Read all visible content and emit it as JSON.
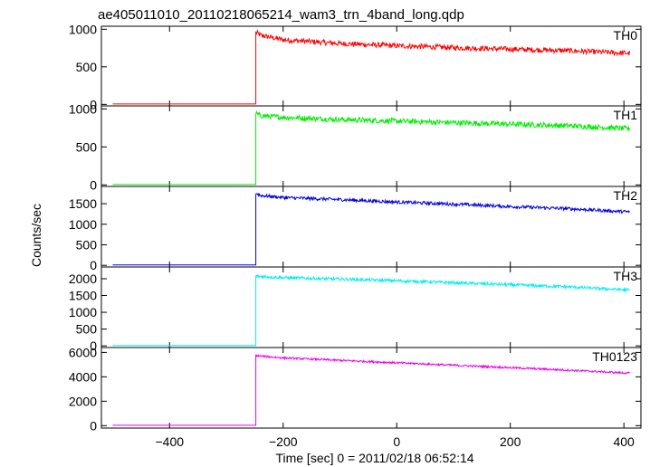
{
  "chart_data": {
    "type": "line",
    "title": "ae405011010_20110218065214_wam3_trn_4band_long.qdp",
    "xlabel": "Time [sec] 0 = 2011/02/18 06:52:14",
    "ylabel": "Counts/sec",
    "xlim": [
      -520,
      430
    ],
    "xticks": [
      -400,
      -200,
      0,
      200,
      400
    ],
    "xtick_labels": [
      "−400",
      "−200",
      "0",
      "200",
      "400"
    ],
    "grid": false,
    "panels": [
      {
        "name": "TH0",
        "color": "#ff0000",
        "ylim": [
          -20,
          1040
        ],
        "yticks": [
          0,
          500,
          1000
        ],
        "ytick_labels": [
          "0",
          "500",
          "1000"
        ],
        "series": {
          "x_start": -500,
          "x_end": 410,
          "onset": -248,
          "pre_level": 5,
          "post_x": [
            -248,
            -240,
            -200,
            -100,
            0,
            100,
            200,
            300,
            410
          ],
          "post_y": [
            960,
            920,
            860,
            810,
            780,
            755,
            735,
            715,
            680
          ],
          "noise": 35
        }
      },
      {
        "name": "TH1",
        "color": "#00ee00",
        "ylim": [
          -20,
          1040
        ],
        "yticks": [
          0,
          500,
          1000
        ],
        "ytick_labels": [
          "0",
          "500",
          "1000"
        ],
        "series": {
          "x_start": -500,
          "x_end": 410,
          "onset": -248,
          "pre_level": 5,
          "post_x": [
            -248,
            -240,
            -200,
            -100,
            0,
            100,
            200,
            300,
            410
          ],
          "post_y": [
            940,
            910,
            890,
            860,
            840,
            820,
            800,
            780,
            740
          ],
          "noise": 35
        }
      },
      {
        "name": "TH2",
        "color": "#0000dd",
        "ylim": [
          -40,
          1920
        ],
        "yticks": [
          0,
          500,
          1000,
          1500
        ],
        "ytick_labels": [
          "0",
          "500",
          "1000",
          "1500"
        ],
        "series": {
          "x_start": -500,
          "x_end": 410,
          "onset": -248,
          "pre_level": 10,
          "post_x": [
            -248,
            -240,
            -200,
            -100,
            0,
            100,
            200,
            300,
            410
          ],
          "post_y": [
            1760,
            1700,
            1650,
            1600,
            1540,
            1490,
            1430,
            1380,
            1300
          ],
          "noise": 40
        }
      },
      {
        "name": "TH3",
        "color": "#00eeee",
        "ylim": [
          -50,
          2350
        ],
        "yticks": [
          0,
          500,
          1000,
          1500,
          2000
        ],
        "ytick_labels": [
          "0",
          "500",
          "1000",
          "1500",
          "2000"
        ],
        "series": {
          "x_start": -500,
          "x_end": 410,
          "onset": -248,
          "pre_level": 10,
          "post_x": [
            -248,
            -240,
            -200,
            -100,
            0,
            100,
            200,
            300,
            410
          ],
          "post_y": [
            2080,
            2070,
            2030,
            1990,
            1940,
            1880,
            1820,
            1760,
            1660
          ],
          "noise": 45
        }
      },
      {
        "name": "TH0123",
        "color": "#ee00ee",
        "ylim": [
          -200,
          6400
        ],
        "yticks": [
          0,
          2000,
          4000,
          6000
        ],
        "ytick_labels": [
          "0",
          "2000",
          "4000",
          "6000"
        ],
        "series": {
          "x_start": -500,
          "x_end": 410,
          "onset": -248,
          "pre_level": 30,
          "post_x": [
            -248,
            -240,
            -200,
            -100,
            0,
            100,
            200,
            300,
            410
          ],
          "post_y": [
            5750,
            5700,
            5550,
            5350,
            5150,
            4950,
            4750,
            4550,
            4300
          ],
          "noise": 80
        }
      }
    ]
  }
}
